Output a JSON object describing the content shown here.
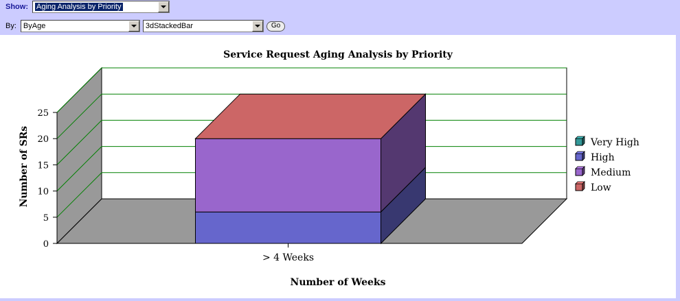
{
  "toolbar": {
    "show_label": "Show:",
    "show_value": "Aging Analysis by Priority",
    "by_label": "By:",
    "by_value": "ByAge",
    "chart_type_value": "3dStackedBar",
    "go_label": "Go"
  },
  "colors": {
    "low": "#cc6666",
    "medium": "#9966cc",
    "high": "#6666cc",
    "very_high": "#339999",
    "gridline": "#008000",
    "wall": "#999999"
  },
  "chart_data": {
    "type": "bar",
    "stacked": true,
    "three_d": true,
    "title": "Service Request Aging Analysis by Priority",
    "xlabel": "Number of Weeks",
    "ylabel": "Number of SRs",
    "categories": [
      "> 4 Weeks"
    ],
    "ylim": [
      0,
      25
    ],
    "yticks": [
      0,
      5,
      10,
      15,
      20,
      25
    ],
    "grid": true,
    "legend_position": "right",
    "series": [
      {
        "name": "Very High",
        "values": [
          0
        ],
        "color": "#339999"
      },
      {
        "name": "High",
        "values": [
          6
        ],
        "color": "#6666cc"
      },
      {
        "name": "Medium",
        "values": [
          14
        ],
        "color": "#9966cc"
      },
      {
        "name": "Low",
        "values": [
          0
        ],
        "color": "#cc6666"
      }
    ]
  }
}
